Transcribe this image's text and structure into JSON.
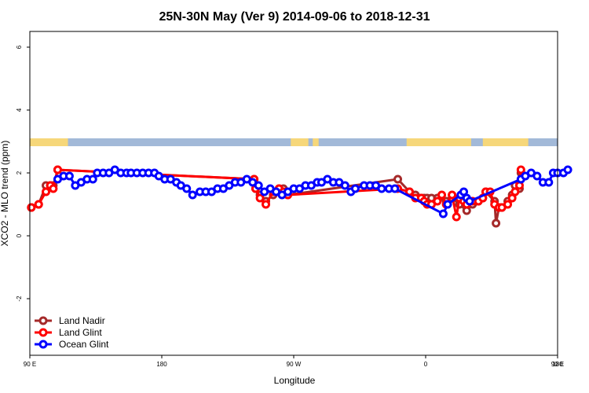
{
  "chart_data": {
    "type": "line",
    "title": "25N-30N May (Ver 9)   2014-09-06 to 2018-12-31",
    "xlabel": "Longitude",
    "ylabel": "XCO2 - MLO trend (ppm)",
    "xlim": [
      90,
      450
    ],
    "ylim": [
      -3.8,
      6.5
    ],
    "x_ticks": [
      {
        "value": 90,
        "label": "90 E"
      },
      {
        "value": 180,
        "label": "180"
      },
      {
        "value": 270,
        "label": "90 W"
      },
      {
        "value": 360,
        "label": "0"
      },
      {
        "value": 450,
        "label": "90 E"
      },
      {
        "value": 540,
        "label": "180"
      }
    ],
    "y_ticks": [
      {
        "value": -2,
        "label": "-2"
      },
      {
        "value": 0,
        "label": "0"
      },
      {
        "value": 2,
        "label": "2"
      },
      {
        "value": 4,
        "label": "4"
      },
      {
        "value": 6,
        "label": "6"
      }
    ],
    "grid": false,
    "legend": "bottom-left",
    "land_mask": {
      "y_range": [
        2.85,
        3.1
      ],
      "ocean_color": "#a2b9d8",
      "land_color": "#f6d77a",
      "land_segments": [
        [
          90,
          116
        ],
        [
          268,
          280
        ],
        [
          283,
          287
        ],
        [
          347,
          391
        ],
        [
          399,
          430
        ]
      ]
    },
    "series": [
      {
        "name": "Land Nadir",
        "color": "#a52a2a",
        "points": [
          [
            91,
            0.9
          ],
          [
            96,
            1.0
          ],
          [
            101,
            1.6
          ],
          [
            104,
            1.6
          ],
          [
            106,
            1.6
          ],
          [
            109,
            2.1
          ],
          [
            243,
            1.8
          ],
          [
            244,
            1.5
          ],
          [
            247,
            1.3
          ],
          [
            251,
            1.1
          ],
          [
            256,
            1.3
          ],
          [
            260,
            1.5
          ],
          [
            263,
            1.5
          ],
          [
            266,
            1.3
          ],
          [
            341,
            1.8
          ],
          [
            349,
            1.4
          ],
          [
            353,
            1.3
          ],
          [
            357,
            1.2
          ],
          [
            359,
            1.2
          ],
          [
            361,
            1.2
          ],
          [
            364,
            1.2
          ],
          [
            368,
            1.2
          ],
          [
            374,
            1.1
          ],
          [
            378,
            1.2
          ],
          [
            383,
            1.0
          ],
          [
            388,
            0.8
          ],
          [
            392,
            1.0
          ],
          [
            396,
            1.1
          ],
          [
            399,
            1.2
          ],
          [
            401,
            1.4
          ],
          [
            407,
            1.1
          ],
          [
            408,
            0.4
          ],
          [
            410,
            0.9
          ],
          [
            412,
            0.9
          ],
          [
            416,
            1.1
          ],
          [
            419,
            1.3
          ],
          [
            421,
            1.6
          ],
          [
            424,
            1.5
          ],
          [
            425,
            2.0
          ]
        ]
      },
      {
        "name": "Land Glint",
        "color": "#ff0000",
        "points": [
          [
            91,
            0.9
          ],
          [
            96,
            1.0
          ],
          [
            101,
            1.4
          ],
          [
            104,
            1.6
          ],
          [
            106,
            1.5
          ],
          [
            109,
            2.1
          ],
          [
            243,
            1.8
          ],
          [
            244,
            1.5
          ],
          [
            247,
            1.2
          ],
          [
            251,
            1.0
          ],
          [
            256,
            1.4
          ],
          [
            260,
            1.5
          ],
          [
            263,
            1.4
          ],
          [
            266,
            1.3
          ],
          [
            341,
            1.5
          ],
          [
            349,
            1.4
          ],
          [
            353,
            1.2
          ],
          [
            357,
            1.2
          ],
          [
            359,
            1.1
          ],
          [
            361,
            1.0
          ],
          [
            364,
            1.0
          ],
          [
            368,
            1.1
          ],
          [
            371,
            1.3
          ],
          [
            374,
            1.0
          ],
          [
            378,
            1.3
          ],
          [
            381,
            0.6
          ],
          [
            383,
            1.2
          ],
          [
            386,
            1.1
          ],
          [
            388,
            1.0
          ],
          [
            392,
            1.1
          ],
          [
            396,
            1.1
          ],
          [
            399,
            1.2
          ],
          [
            401,
            1.4
          ],
          [
            404,
            1.4
          ],
          [
            407,
            1.0
          ],
          [
            410,
            0.9
          ],
          [
            412,
            0.9
          ],
          [
            416,
            1.0
          ],
          [
            419,
            1.2
          ],
          [
            421,
            1.4
          ],
          [
            424,
            1.6
          ],
          [
            425,
            2.1
          ]
        ]
      },
      {
        "name": "Ocean Glint",
        "color": "#0000ff",
        "points": [
          [
            109,
            1.8
          ],
          [
            113,
            1.9
          ],
          [
            117,
            1.9
          ],
          [
            121,
            1.6
          ],
          [
            125,
            1.7
          ],
          [
            129,
            1.8
          ],
          [
            133,
            1.8
          ],
          [
            136,
            2.0
          ],
          [
            140,
            2.0
          ],
          [
            144,
            2.0
          ],
          [
            148,
            2.1
          ],
          [
            152,
            2.0
          ],
          [
            156,
            2.0
          ],
          [
            159,
            2.0
          ],
          [
            163,
            2.0
          ],
          [
            167,
            2.0
          ],
          [
            171,
            2.0
          ],
          [
            175,
            2.0
          ],
          [
            178,
            1.9
          ],
          [
            182,
            1.8
          ],
          [
            186,
            1.8
          ],
          [
            190,
            1.7
          ],
          [
            193,
            1.6
          ],
          [
            197,
            1.5
          ],
          [
            201,
            1.3
          ],
          [
            206,
            1.4
          ],
          [
            210,
            1.4
          ],
          [
            214,
            1.4
          ],
          [
            218,
            1.5
          ],
          [
            222,
            1.5
          ],
          [
            226,
            1.6
          ],
          [
            230,
            1.7
          ],
          [
            234,
            1.7
          ],
          [
            238,
            1.8
          ],
          [
            242,
            1.7
          ],
          [
            246,
            1.6
          ],
          [
            250,
            1.4
          ],
          [
            254,
            1.5
          ],
          [
            258,
            1.4
          ],
          [
            262,
            1.3
          ],
          [
            266,
            1.4
          ],
          [
            270,
            1.5
          ],
          [
            274,
            1.5
          ],
          [
            278,
            1.6
          ],
          [
            282,
            1.6
          ],
          [
            286,
            1.7
          ],
          [
            289,
            1.7
          ],
          [
            293,
            1.8
          ],
          [
            297,
            1.7
          ],
          [
            301,
            1.7
          ],
          [
            305,
            1.6
          ],
          [
            309,
            1.4
          ],
          [
            312,
            1.5
          ],
          [
            318,
            1.6
          ],
          [
            322,
            1.6
          ],
          [
            326,
            1.6
          ],
          [
            330,
            1.5
          ],
          [
            335,
            1.5
          ],
          [
            339,
            1.5
          ],
          [
            372,
            0.7
          ],
          [
            375,
            1.0
          ],
          [
            384,
            1.3
          ],
          [
            386,
            1.4
          ],
          [
            388,
            1.2
          ],
          [
            390,
            1.1
          ],
          [
            425,
            1.8
          ],
          [
            428,
            1.9
          ],
          [
            432,
            2.0
          ],
          [
            436,
            1.9
          ],
          [
            440,
            1.7
          ],
          [
            444,
            1.7
          ],
          [
            447,
            2.0
          ],
          [
            450,
            2.0
          ],
          [
            454,
            2.0
          ],
          [
            457,
            2.1
          ]
        ]
      }
    ]
  }
}
